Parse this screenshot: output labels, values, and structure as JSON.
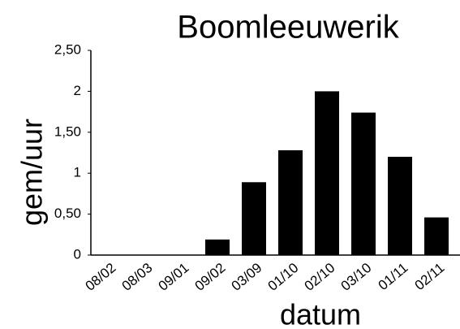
{
  "chart_data": {
    "type": "bar",
    "title": "Boomleeuwerik",
    "x_label": "datum",
    "y_label": "gem/uur",
    "categories": [
      "08/02",
      "08/03",
      "09/01",
      "09/02",
      "03/09",
      "01/10",
      "02/10",
      "03/10",
      "01/11",
      "02/11"
    ],
    "values": [
      0,
      0,
      0,
      0.19,
      0.89,
      1.28,
      2.0,
      1.74,
      1.2,
      0.46
    ],
    "color": "#000000",
    "ylim": [
      0,
      2.5
    ],
    "yticks": [
      0,
      {
        "value": 0.5,
        "label": "0,50"
      },
      1,
      {
        "value": 1.5,
        "label": "1,50"
      },
      2,
      {
        "value": 2.5,
        "label": "2,50"
      }
    ],
    "grid": false
  }
}
